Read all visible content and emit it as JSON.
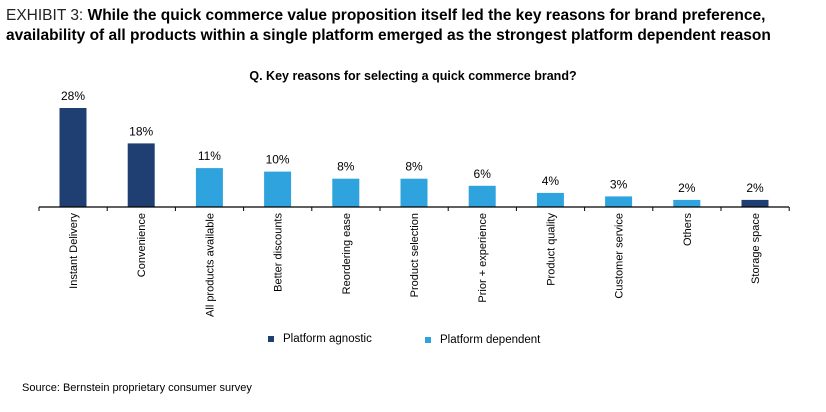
{
  "header": {
    "exhibit_label": "EXHIBIT 3: ",
    "title": "While the quick commerce value proposition itself led the key reasons for brand preference, availability of all products within a single platform emerged as the strongest platform dependent reason"
  },
  "source": "Source: Bernstein proprietary consumer survey",
  "chart_data": {
    "type": "bar",
    "title": "Q. Key reasons for selecting a quick commerce brand?",
    "xlabel": "",
    "ylabel": "",
    "ylim": [
      0,
      30
    ],
    "grid": false,
    "legend_position": "bottom",
    "categories": [
      "Instant Delivery",
      "Convenience",
      "All products available",
      "Better discounts",
      "Reordering ease",
      "Product selection",
      "Prior + experience",
      "Product quality",
      "Customer service",
      "Others",
      "Storage space"
    ],
    "values": [
      28,
      18,
      11,
      10,
      8,
      8,
      6,
      4,
      3,
      2,
      2
    ],
    "value_labels": [
      "28%",
      "18%",
      "11%",
      "10%",
      "8%",
      "8%",
      "6%",
      "4%",
      "3%",
      "2%",
      "2%"
    ],
    "groups": [
      "Platform agnostic",
      "Platform agnostic",
      "Platform dependent",
      "Platform dependent",
      "Platform dependent",
      "Platform dependent",
      "Platform dependent",
      "Platform dependent",
      "Platform dependent",
      "Platform dependent",
      "Platform agnostic"
    ],
    "legend": [
      {
        "name": "Platform agnostic",
        "color": "#1f3f73"
      },
      {
        "name": "Platform dependent",
        "color": "#2fa3dd"
      }
    ]
  }
}
